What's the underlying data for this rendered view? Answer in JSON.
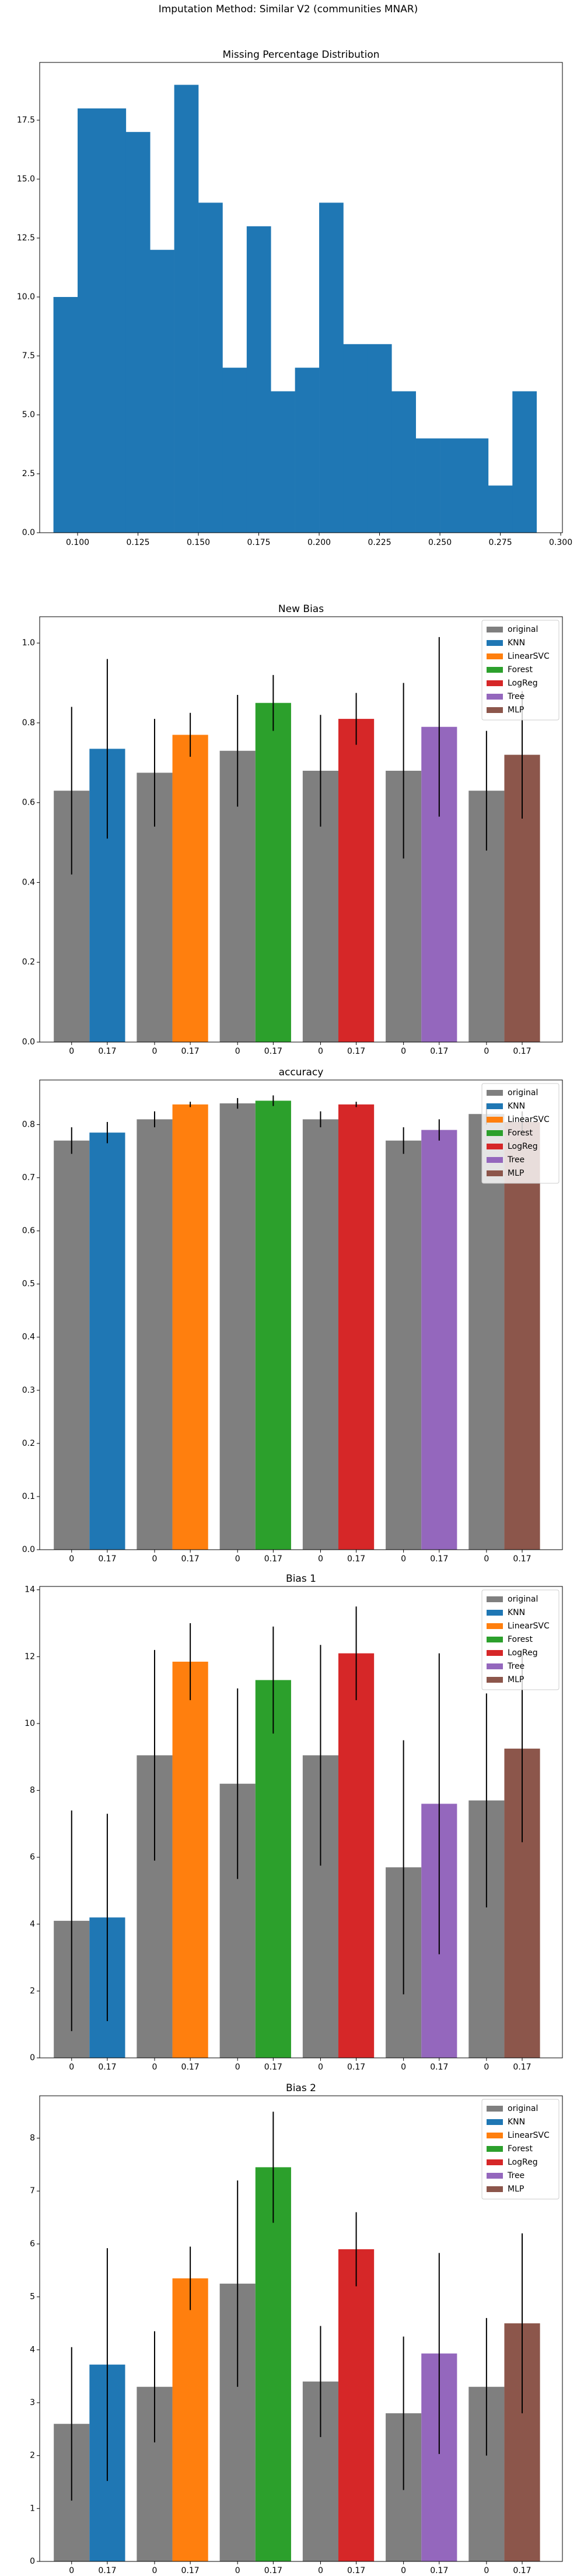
{
  "title": "Imputation Method: Similar V2 (communities MNAR)",
  "chart_data": [
    {
      "type": "histogram",
      "title": "Missing Percentage Distribution",
      "color": "#1f77b4",
      "bins": [
        0.09,
        0.1,
        0.11,
        0.12,
        0.13,
        0.14,
        0.15,
        0.16,
        0.17,
        0.18,
        0.19,
        0.2,
        0.21,
        0.22,
        0.23,
        0.24,
        0.25,
        0.26,
        0.27,
        0.28,
        0.29
      ],
      "values": [
        10,
        18,
        18,
        17,
        12,
        19,
        14,
        7,
        13,
        6,
        7,
        14,
        8,
        8,
        6,
        4,
        4,
        4,
        2,
        6
      ],
      "xlim": [
        0.0843,
        0.3007
      ],
      "xticks": [
        {
          "value": 0.1,
          "label": "0.100"
        },
        {
          "value": 0.125,
          "label": "0.125"
        },
        {
          "value": 0.15,
          "label": "0.150"
        },
        {
          "value": 0.175,
          "label": "0.175"
        },
        {
          "value": 0.2,
          "label": "0.200"
        },
        {
          "value": 0.225,
          "label": "0.225"
        },
        {
          "value": 0.25,
          "label": "0.250"
        },
        {
          "value": 0.275,
          "label": "0.275"
        },
        {
          "value": 0.3,
          "label": "0.300"
        }
      ],
      "ylim": [
        0,
        19.95
      ],
      "yticks": [
        {
          "value": 0,
          "label": "0.0"
        },
        {
          "value": 2.5,
          "label": "2.5"
        },
        {
          "value": 5,
          "label": "5.0"
        },
        {
          "value": 7.5,
          "label": "7.5"
        },
        {
          "value": 10,
          "label": "10.0"
        },
        {
          "value": 12.5,
          "label": "12.5"
        },
        {
          "value": 15,
          "label": "15.0"
        },
        {
          "value": 17.5,
          "label": "17.5"
        }
      ]
    },
    {
      "type": "bar",
      "title": "New Bias",
      "legend": "upper right",
      "xticklabels": [
        "0",
        "0.17",
        "0",
        "0.17",
        "0",
        "0.17",
        "0",
        "0.17",
        "0",
        "0.17",
        "0",
        "0.17"
      ],
      "ylim": [
        0,
        1.066
      ],
      "yticks": [
        {
          "value": 0,
          "label": "0.0"
        },
        {
          "value": 0.2,
          "label": "0.2"
        },
        {
          "value": 0.4,
          "label": "0.4"
        },
        {
          "value": 0.6,
          "label": "0.6"
        },
        {
          "value": 0.8,
          "label": "0.8"
        },
        {
          "value": 1.0,
          "label": "1.0"
        }
      ],
      "series": [
        {
          "name": "original",
          "color": "#7f7f7f",
          "values": [
            0.63,
            0.675,
            0.73,
            0.68,
            0.68,
            0.63
          ],
          "errors": [
            0.21,
            0.135,
            0.14,
            0.14,
            0.22,
            0.15
          ]
        },
        {
          "name": "KNN",
          "color": "#1f77b4",
          "values": [
            0.735,
            null,
            null,
            null,
            null,
            null
          ],
          "errors": [
            0.225,
            null,
            null,
            null,
            null,
            null
          ]
        },
        {
          "name": "LinearSVC",
          "color": "#ff7f0e",
          "values": [
            null,
            0.77,
            null,
            null,
            null,
            null
          ],
          "errors": [
            null,
            0.055,
            null,
            null,
            null,
            null
          ]
        },
        {
          "name": "Forest",
          "color": "#2ca02c",
          "values": [
            null,
            null,
            0.85,
            null,
            null,
            null
          ],
          "errors": [
            null,
            null,
            0.07,
            null,
            null,
            null
          ]
        },
        {
          "name": "LogReg",
          "color": "#d62728",
          "values": [
            null,
            null,
            null,
            0.81,
            null,
            null
          ],
          "errors": [
            null,
            null,
            null,
            0.065,
            null,
            null
          ]
        },
        {
          "name": "Tree",
          "color": "#9467bd",
          "values": [
            null,
            null,
            null,
            null,
            0.79,
            null
          ],
          "errors": [
            null,
            null,
            null,
            null,
            0.225,
            null
          ]
        },
        {
          "name": "MLP",
          "color": "#8c564b",
          "values": [
            null,
            null,
            null,
            null,
            null,
            0.72
          ],
          "errors": [
            null,
            null,
            null,
            null,
            null,
            0.16
          ]
        }
      ]
    },
    {
      "type": "bar",
      "title": "accuracy",
      "legend": "upper right",
      "xticklabels": [
        "0",
        "0.17",
        "0",
        "0.17",
        "0",
        "0.17",
        "0",
        "0.17",
        "0",
        "0.17",
        "0",
        "0.17"
      ],
      "ylim": [
        0,
        0.884
      ],
      "yticks": [
        {
          "value": 0,
          "label": "0.0"
        },
        0.1,
        0.2,
        0.3,
        0.4,
        0.5,
        0.6,
        0.7,
        0.8
      ],
      "series": [
        {
          "name": "original",
          "color": "#7f7f7f",
          "values": [
            0.77,
            0.81,
            0.84,
            0.81,
            0.77,
            0.82
          ],
          "errors": [
            0.025,
            0.015,
            0.01,
            0.015,
            0.025,
            0.02
          ]
        },
        {
          "name": "KNN",
          "color": "#1f77b4",
          "values": [
            0.785,
            null,
            null,
            null,
            null,
            null
          ],
          "errors": [
            0.02,
            null,
            null,
            null,
            null,
            null
          ]
        },
        {
          "name": "LinearSVC",
          "color": "#ff7f0e",
          "values": [
            null,
            0.838,
            null,
            null,
            null,
            null
          ],
          "errors": [
            null,
            0.005,
            null,
            null,
            null,
            null
          ]
        },
        {
          "name": "Forest",
          "color": "#2ca02c",
          "values": [
            null,
            null,
            0.845,
            null,
            null,
            null
          ],
          "errors": [
            null,
            null,
            0.01,
            null,
            null,
            null
          ]
        },
        {
          "name": "LogReg",
          "color": "#d62728",
          "values": [
            null,
            null,
            null,
            0.838,
            null,
            null
          ],
          "errors": [
            null,
            null,
            null,
            0.005,
            null,
            null
          ]
        },
        {
          "name": "Tree",
          "color": "#9467bd",
          "values": [
            null,
            null,
            null,
            null,
            0.79,
            null
          ],
          "errors": [
            null,
            null,
            null,
            null,
            0.02,
            null
          ]
        },
        {
          "name": "MLP",
          "color": "#8c564b",
          "values": [
            null,
            null,
            null,
            null,
            null,
            0.805
          ],
          "errors": [
            null,
            null,
            null,
            null,
            null,
            0.02
          ]
        }
      ]
    },
    {
      "type": "bar",
      "title": "Bias 1",
      "legend": "upper right",
      "xticklabels": [
        "0",
        "0.17",
        "0",
        "0.17",
        "0",
        "0.17",
        "0",
        "0.17",
        "0",
        "0.17",
        "0",
        "0.17"
      ],
      "ylim": [
        0,
        14.1
      ],
      "yticks": [
        0,
        2,
        4,
        6,
        8,
        10,
        12,
        14
      ],
      "series": [
        {
          "name": "original",
          "color": "#7f7f7f",
          "values": [
            4.1,
            9.05,
            8.2,
            9.05,
            5.7,
            7.7
          ],
          "errors": [
            3.3,
            3.15,
            2.85,
            3.3,
            3.8,
            3.2
          ]
        },
        {
          "name": "KNN",
          "color": "#1f77b4",
          "values": [
            4.2,
            null,
            null,
            null,
            null,
            null
          ],
          "errors": [
            3.1,
            null,
            null,
            null,
            null,
            null
          ]
        },
        {
          "name": "LinearSVC",
          "color": "#ff7f0e",
          "values": [
            null,
            11.85,
            null,
            null,
            null,
            null
          ],
          "errors": [
            null,
            1.15,
            null,
            null,
            null,
            null
          ]
        },
        {
          "name": "Forest",
          "color": "#2ca02c",
          "values": [
            null,
            null,
            11.3,
            null,
            null,
            null
          ],
          "errors": [
            null,
            null,
            1.6,
            null,
            null,
            null
          ]
        },
        {
          "name": "LogReg",
          "color": "#d62728",
          "values": [
            null,
            null,
            null,
            12.1,
            null,
            null
          ],
          "errors": [
            null,
            null,
            null,
            1.4,
            null,
            null
          ]
        },
        {
          "name": "Tree",
          "color": "#9467bd",
          "values": [
            null,
            null,
            null,
            null,
            7.6,
            null
          ],
          "errors": [
            null,
            null,
            null,
            null,
            4.5,
            null
          ]
        },
        {
          "name": "MLP",
          "color": "#8c564b",
          "values": [
            null,
            null,
            null,
            null,
            null,
            9.25
          ],
          "errors": [
            null,
            null,
            null,
            null,
            null,
            2.8
          ]
        }
      ]
    },
    {
      "type": "bar",
      "title": "Bias 2",
      "legend": "upper right",
      "xticklabels": [
        "0",
        "0.17",
        "0",
        "0.17",
        "0",
        "0.17",
        "0",
        "0.17",
        "0",
        "0.17",
        "0",
        "0.17"
      ],
      "ylim": [
        0,
        8.8
      ],
      "yticks": [
        0,
        1,
        2,
        3,
        4,
        5,
        6,
        7,
        8
      ],
      "series": [
        {
          "name": "original",
          "color": "#7f7f7f",
          "values": [
            2.6,
            3.3,
            5.25,
            3.4,
            2.8,
            3.3
          ],
          "errors": [
            1.45,
            1.05,
            1.95,
            1.05,
            1.45,
            1.3
          ]
        },
        {
          "name": "KNN",
          "color": "#1f77b4",
          "values": [
            3.72,
            null,
            null,
            null,
            null,
            null
          ],
          "errors": [
            2.2,
            null,
            null,
            null,
            null,
            null
          ]
        },
        {
          "name": "LinearSVC",
          "color": "#ff7f0e",
          "values": [
            null,
            5.35,
            null,
            null,
            null,
            null
          ],
          "errors": [
            null,
            0.6,
            null,
            null,
            null,
            null
          ]
        },
        {
          "name": "Forest",
          "color": "#2ca02c",
          "values": [
            null,
            null,
            7.45,
            null,
            null,
            null
          ],
          "errors": [
            null,
            null,
            1.05,
            null,
            null,
            null
          ]
        },
        {
          "name": "LogReg",
          "color": "#d62728",
          "values": [
            null,
            null,
            null,
            5.9,
            null,
            null
          ],
          "errors": [
            null,
            null,
            null,
            0.7,
            null,
            null
          ]
        },
        {
          "name": "Tree",
          "color": "#9467bd",
          "values": [
            null,
            null,
            null,
            null,
            3.93,
            null
          ],
          "errors": [
            null,
            null,
            null,
            null,
            1.9,
            null
          ]
        },
        {
          "name": "MLP",
          "color": "#8c564b",
          "values": [
            null,
            null,
            null,
            null,
            null,
            4.5
          ],
          "errors": [
            null,
            null,
            null,
            null,
            null,
            1.7
          ]
        }
      ]
    }
  ]
}
